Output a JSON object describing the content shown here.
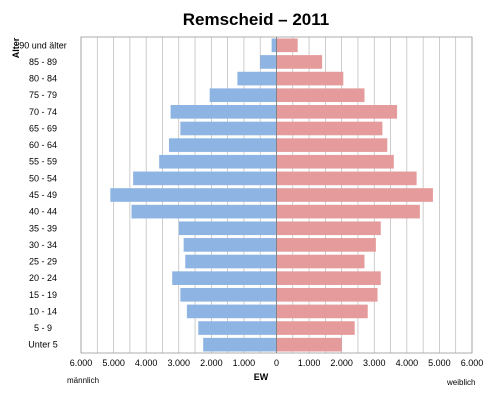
{
  "chart_data": {
    "type": "bar",
    "orientation": "horizontal",
    "title": "Remscheid – 2011",
    "ylabel": "Alter",
    "xlabel": "EW",
    "left_label": "männlich",
    "right_label": "weiblich",
    "categories": [
      "90 und älter",
      "85 - 89",
      "80 - 84",
      "75 - 79",
      "70 - 74",
      "65 - 69",
      "60 - 64",
      "55 - 59",
      "50 - 54",
      "45 - 49",
      "40 - 44",
      "35 - 39",
      "30 - 34",
      "25 - 29",
      "20 - 24",
      "15 - 19",
      "10 - 14",
      "5 - 9",
      "Unter 5"
    ],
    "series": [
      {
        "name": "männlich",
        "color": "#8db4e2",
        "values": [
          150,
          500,
          1200,
          2050,
          3250,
          2950,
          3300,
          3600,
          4400,
          5100,
          4450,
          3000,
          2850,
          2800,
          3200,
          2950,
          2750,
          2400,
          2250
        ]
      },
      {
        "name": "weiblich",
        "color": "#e59b9b",
        "values": [
          650,
          1400,
          2050,
          2700,
          3700,
          3250,
          3400,
          3600,
          4300,
          4800,
          4400,
          3200,
          3050,
          2700,
          3200,
          3100,
          2800,
          2400,
          2000
        ]
      }
    ],
    "xlim": [
      -6000,
      6000
    ],
    "xticks": [
      -6000,
      -5000,
      -4000,
      -3000,
      -2000,
      -1000,
      0,
      1000,
      2000,
      3000,
      4000,
      5000,
      6000
    ],
    "xtick_labels": [
      "6.000",
      "5.000",
      "4.000",
      "3.000",
      "2.000",
      "1.000",
      "0",
      "1.000",
      "2.000",
      "3.000",
      "4.000",
      "5.000",
      "6.000"
    ],
    "grid_step": 500,
    "grid": true,
    "legend": "none"
  }
}
